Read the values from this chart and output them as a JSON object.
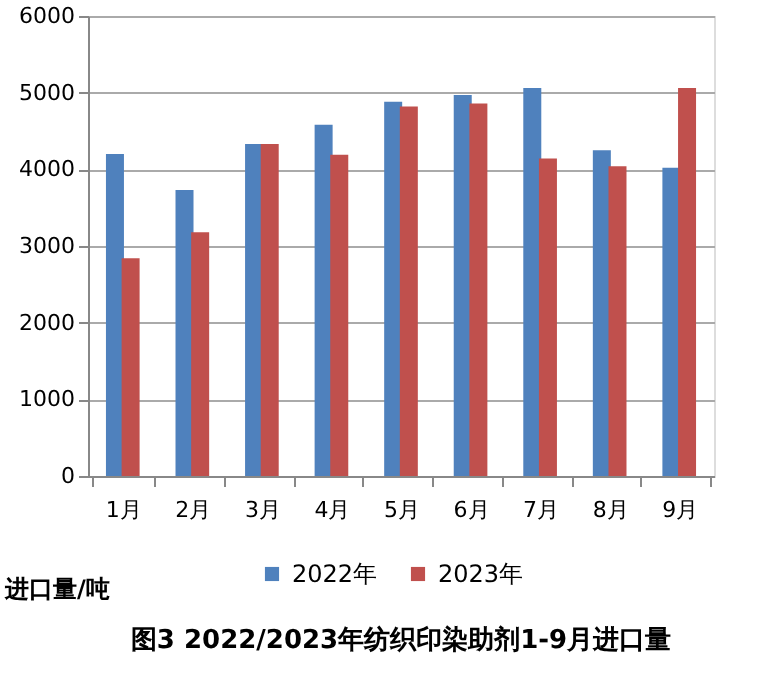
{
  "chart_data": {
    "type": "bar",
    "title": "图3 2022/2023年纺织印染助剂1-9月进口量",
    "ylabel": "进口量/吨",
    "categories": [
      "1月",
      "2月",
      "3月",
      "4月",
      "5月",
      "6月",
      "7月",
      "8月",
      "9月"
    ],
    "series": [
      {
        "name": "2022年",
        "color": "#4f81bd",
        "values": [
          4200,
          3730,
          4330,
          4580,
          4880,
          4970,
          5060,
          4250,
          4020
        ]
      },
      {
        "name": "2023年",
        "color": "#c0504d",
        "values": [
          2840,
          3180,
          4330,
          4190,
          4820,
          4860,
          4140,
          4040,
          5060
        ]
      }
    ],
    "ylim": [
      0,
      6000
    ],
    "yticks": [
      0,
      1000,
      2000,
      3000,
      4000,
      5000,
      6000
    ],
    "grid": "y",
    "legend": "bottom"
  }
}
